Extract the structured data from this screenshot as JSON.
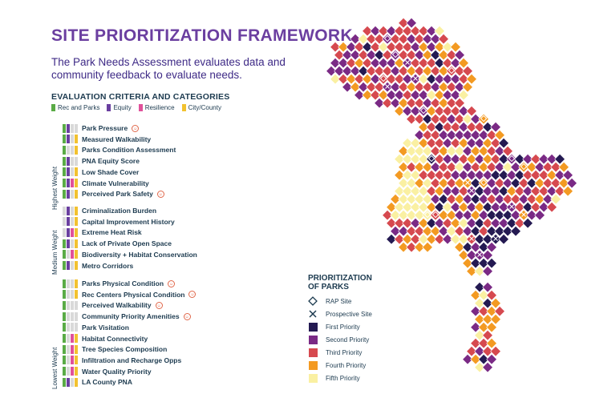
{
  "title": "SITE PRIORITIZATION FRAMEWORK",
  "subtitle": "The Park Needs Assessment evaluates data and\ncommunity feedback to evaluate needs.",
  "criteria_header": "EVALUATION CRITERIA AND CATEGORIES",
  "categories": [
    {
      "label": "Rec and Parks",
      "color": "#5aab46"
    },
    {
      "label": "Equity",
      "color": "#6a3fa0"
    },
    {
      "label": "Resilience",
      "color": "#e0519a"
    },
    {
      "label": "City/County",
      "color": "#f2c230"
    }
  ],
  "weight_groups": [
    "Highest Weight",
    "Medium Weight",
    "Lowest Weight"
  ],
  "badge_icon": "community-feedback-icon",
  "criteria": [
    {
      "label": "Park Pressure",
      "group": 0,
      "cats": [
        1,
        1,
        0,
        0
      ],
      "badge": true
    },
    {
      "label": "Measured Walkability",
      "group": 0,
      "cats": [
        1,
        1,
        0,
        1
      ],
      "badge": false
    },
    {
      "label": "Parks Condition Assessment",
      "group": 0,
      "cats": [
        1,
        0,
        0,
        1
      ],
      "badge": false
    },
    {
      "label": "PNA Equity Score",
      "group": 0,
      "cats": [
        1,
        1,
        0,
        0
      ],
      "badge": false
    },
    {
      "label": "Low Shade Cover",
      "group": 0,
      "cats": [
        1,
        1,
        0,
        1
      ],
      "badge": false
    },
    {
      "label": "Climate Vulnerability",
      "group": 0,
      "cats": [
        1,
        1,
        1,
        1
      ],
      "badge": false
    },
    {
      "label": "Perceived Park Safety",
      "group": 0,
      "cats": [
        1,
        1,
        0,
        1
      ],
      "badge": true
    },
    {
      "label": "Criminalization Burden",
      "group": 1,
      "cats": [
        0,
        1,
        0,
        1
      ],
      "badge": false
    },
    {
      "label": "Capital Improvement History",
      "group": 1,
      "cats": [
        0,
        1,
        0,
        1
      ],
      "badge": false
    },
    {
      "label": "Extreme Heat Risk",
      "group": 1,
      "cats": [
        0,
        1,
        1,
        1
      ],
      "badge": false
    },
    {
      "label": "Lack of Private Open Space",
      "group": 1,
      "cats": [
        1,
        1,
        0,
        1
      ],
      "badge": false
    },
    {
      "label": "Biodiversity + Habitat Conservation",
      "group": 1,
      "cats": [
        1,
        0,
        1,
        1
      ],
      "badge": false
    },
    {
      "label": "Metro Corridors",
      "group": 1,
      "cats": [
        1,
        1,
        0,
        1
      ],
      "badge": false
    },
    {
      "label": "Parks Physical Condition",
      "group": 2,
      "cats": [
        1,
        0,
        0,
        1
      ],
      "badge": true
    },
    {
      "label": "Rec Centers Physical Condition",
      "group": 2,
      "cats": [
        1,
        0,
        0,
        1
      ],
      "badge": true
    },
    {
      "label": "Perceived Walkability",
      "group": 2,
      "cats": [
        1,
        0,
        0,
        0
      ],
      "badge": true
    },
    {
      "label": "Community Priority Amenities",
      "group": 2,
      "cats": [
        1,
        0,
        0,
        0
      ],
      "badge": true
    },
    {
      "label": "Park Visitation",
      "group": 2,
      "cats": [
        1,
        0,
        0,
        0
      ],
      "badge": false
    },
    {
      "label": "Habitat Connectivity",
      "group": 2,
      "cats": [
        1,
        0,
        1,
        1
      ],
      "badge": false
    },
    {
      "label": "Tree Species Composition",
      "group": 2,
      "cats": [
        1,
        0,
        1,
        1
      ],
      "badge": false
    },
    {
      "label": "Infiltration and Recharge Opps",
      "group": 2,
      "cats": [
        1,
        0,
        1,
        1
      ],
      "badge": false
    },
    {
      "label": "Water Quality Priority",
      "group": 2,
      "cats": [
        1,
        0,
        1,
        1
      ],
      "badge": false
    },
    {
      "label": "LA County PNA",
      "group": 2,
      "cats": [
        1,
        1,
        0,
        1
      ],
      "badge": false
    }
  ],
  "map_legend": {
    "title": "PRIORITIZATION\nOF PARKS",
    "items": [
      {
        "label": "RAP Site",
        "symbol": "diamond-icon"
      },
      {
        "label": "Prospective Site",
        "symbol": "x-icon"
      },
      {
        "label": "First Priority",
        "color": "#241a52"
      },
      {
        "label": "Second Priority",
        "color": "#7a2a85"
      },
      {
        "label": "Third Priority",
        "color": "#d6494f"
      },
      {
        "label": "Fourth Priority",
        "color": "#f39a22"
      },
      {
        "label": "Fifth Priority",
        "color": "#faf0a2"
      }
    ]
  }
}
